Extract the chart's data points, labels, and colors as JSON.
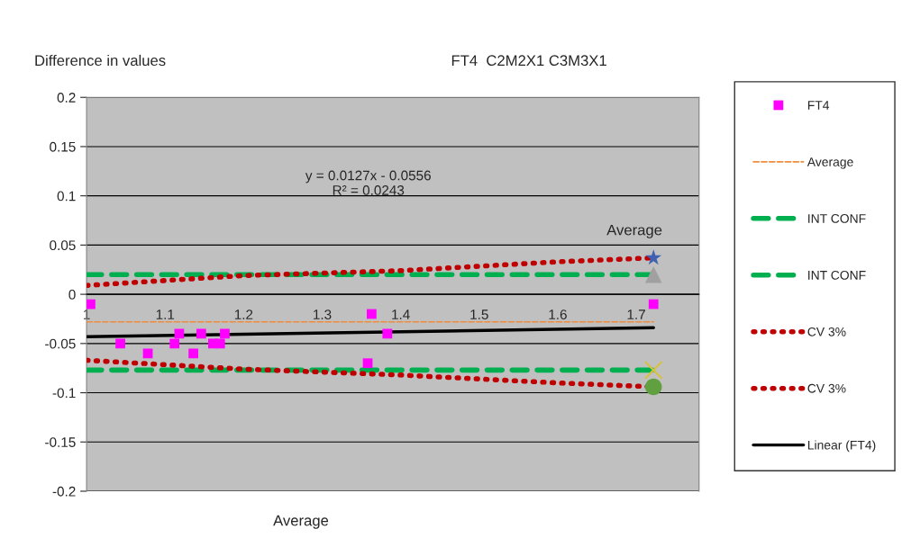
{
  "chart_data": {
    "type": "scatter",
    "title": "FT4  C2M2X1 C3M3X1",
    "xlabel": "Average",
    "ylabel": "Difference in values",
    "annotations": [
      "y = 0.0127x - 0.0556\nR² = 0.0243",
      "Average"
    ],
    "series": [
      {
        "name": "FT4",
        "color": "#ff00ff",
        "marker": "square",
        "x": [
          1.005,
          1.043,
          1.078,
          1.112,
          1.118,
          1.136,
          1.146,
          1.161,
          1.17,
          1.176,
          1.358,
          1.363,
          1.383,
          1.722
        ],
        "values": [
          -0.01,
          -0.05,
          -0.06,
          -0.05,
          -0.04,
          -0.06,
          -0.04,
          -0.05,
          -0.05,
          -0.04,
          -0.07,
          -0.02,
          -0.04,
          -0.01
        ]
      },
      {
        "name": "Average",
        "type": "line",
        "color": "#f08c3c",
        "line_style": "dashed",
        "x": [
          1.0,
          1.722
        ],
        "values": [
          -0.028,
          -0.028
        ]
      },
      {
        "name": "INT CONF",
        "type": "line",
        "color": "#00b050",
        "line_style": "dashed",
        "x": [
          1.0,
          1.722
        ],
        "values": [
          0.02,
          0.02
        ]
      },
      {
        "name": "INT CONF",
        "type": "line",
        "color": "#00b050",
        "line_style": "dashed",
        "x": [
          1.0,
          1.722
        ],
        "values": [
          -0.077,
          -0.077
        ]
      },
      {
        "name": "CV 3%",
        "type": "line",
        "color": "#c00000",
        "line_style": "dotted",
        "x": [
          1.0,
          1.2,
          1.4,
          1.6,
          1.722
        ],
        "values": [
          0.009,
          0.019,
          0.024,
          0.033,
          0.037
        ]
      },
      {
        "name": "CV 3%",
        "type": "line",
        "color": "#c00000",
        "line_style": "dotted",
        "x": [
          1.0,
          1.2,
          1.4,
          1.6,
          1.722
        ],
        "values": [
          -0.067,
          -0.076,
          -0.082,
          -0.09,
          -0.094
        ]
      },
      {
        "name": "Linear (FT4)",
        "type": "line",
        "color": "#000000",
        "line_style": "solid",
        "x": [
          1.0,
          1.722
        ],
        "values": [
          -0.043,
          -0.034
        ]
      },
      {
        "color": "#a0a0a0",
        "marker": "triangle",
        "x": [
          1.722
        ],
        "values": [
          0.02
        ]
      },
      {
        "color": "#d8c040",
        "marker": "cross",
        "x": [
          1.722
        ],
        "values": [
          -0.077
        ]
      },
      {
        "color": "#4060b0",
        "marker": "star",
        "x": [
          1.722
        ],
        "values": [
          0.037
        ]
      },
      {
        "color": "#60a040",
        "marker": "circle",
        "x": [
          1.722
        ],
        "values": [
          -0.094
        ]
      }
    ],
    "xlim": [
      1.0,
      1.78
    ],
    "xticks": [
      {
        "value": 1.0,
        "label": "1"
      },
      1.1,
      1.2,
      1.3,
      1.4,
      1.5,
      1.6,
      1.7
    ],
    "ylim": [
      -0.2,
      0.2
    ],
    "yticks": [
      -0.2,
      -0.15,
      -0.1,
      -0.05,
      0,
      0.05,
      0.1,
      0.15,
      0.2
    ],
    "grid": "y",
    "legend": "right"
  }
}
